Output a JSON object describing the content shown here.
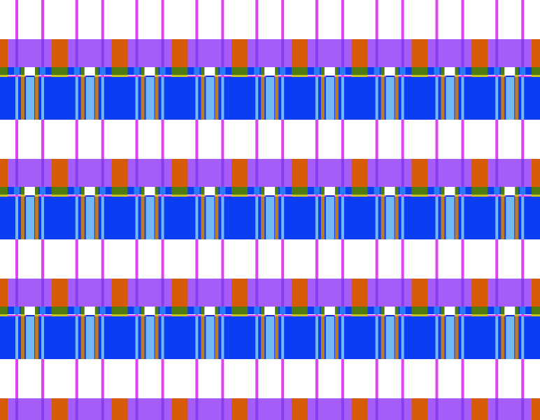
{
  "pattern": {
    "colors": {
      "background": "#ffffff",
      "purple": "#a65cf8",
      "orange": "#d65a08",
      "green": "#4f7b12",
      "blue": "#0b3ef2",
      "light_blue": "#72b8f4",
      "brown": "#b87c2c",
      "magenta": "#e043f0",
      "dark_violet": "#8a3cf0",
      "yellow": "#c4c41e",
      "dark_blue": "#1a2fd0"
    }
  }
}
